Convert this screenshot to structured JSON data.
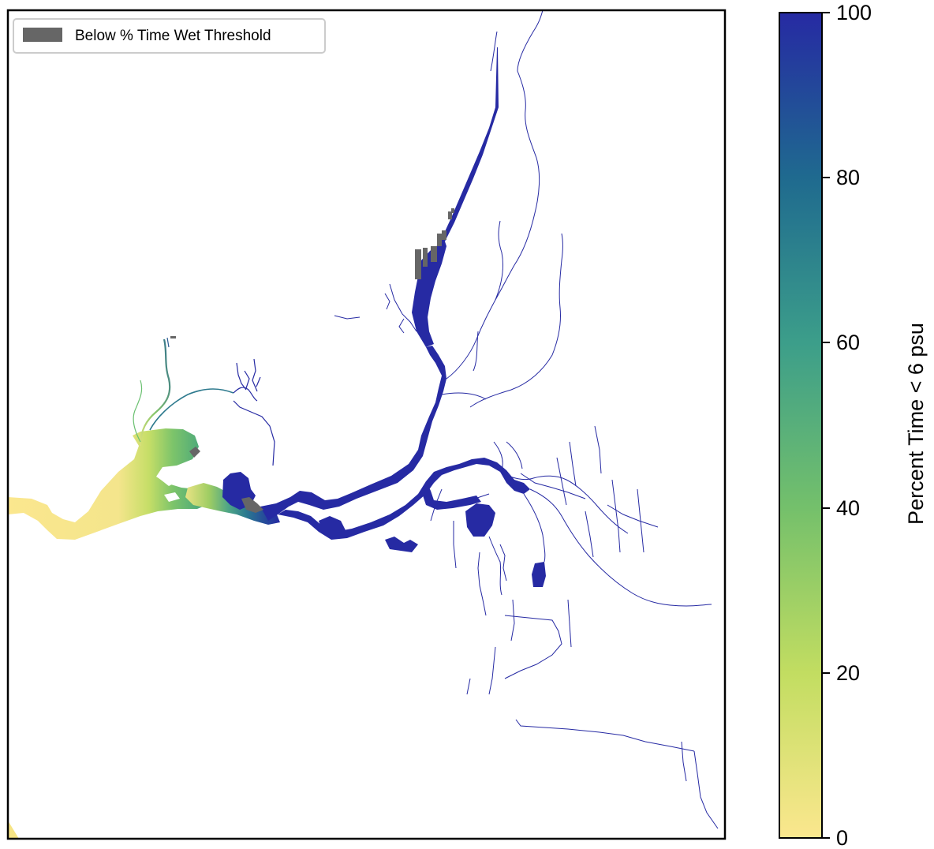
{
  "legend": {
    "label": "Below % Time Wet Threshold",
    "swatch_color": "#666666"
  },
  "colorbar": {
    "label": "Percent Time < 6 psu",
    "ticks": [
      "100",
      "80",
      "60",
      "40",
      "20",
      "0"
    ],
    "range": [
      0,
      100
    ],
    "colors": {
      "low": "#fbe78e",
      "mid_low": "#8ccb57",
      "mid": "#4aa685",
      "mid_high": "#22688a",
      "high": "#262aa3"
    }
  },
  "map": {
    "water_high_color": "#262aa3",
    "below_threshold_color": "#666666"
  }
}
